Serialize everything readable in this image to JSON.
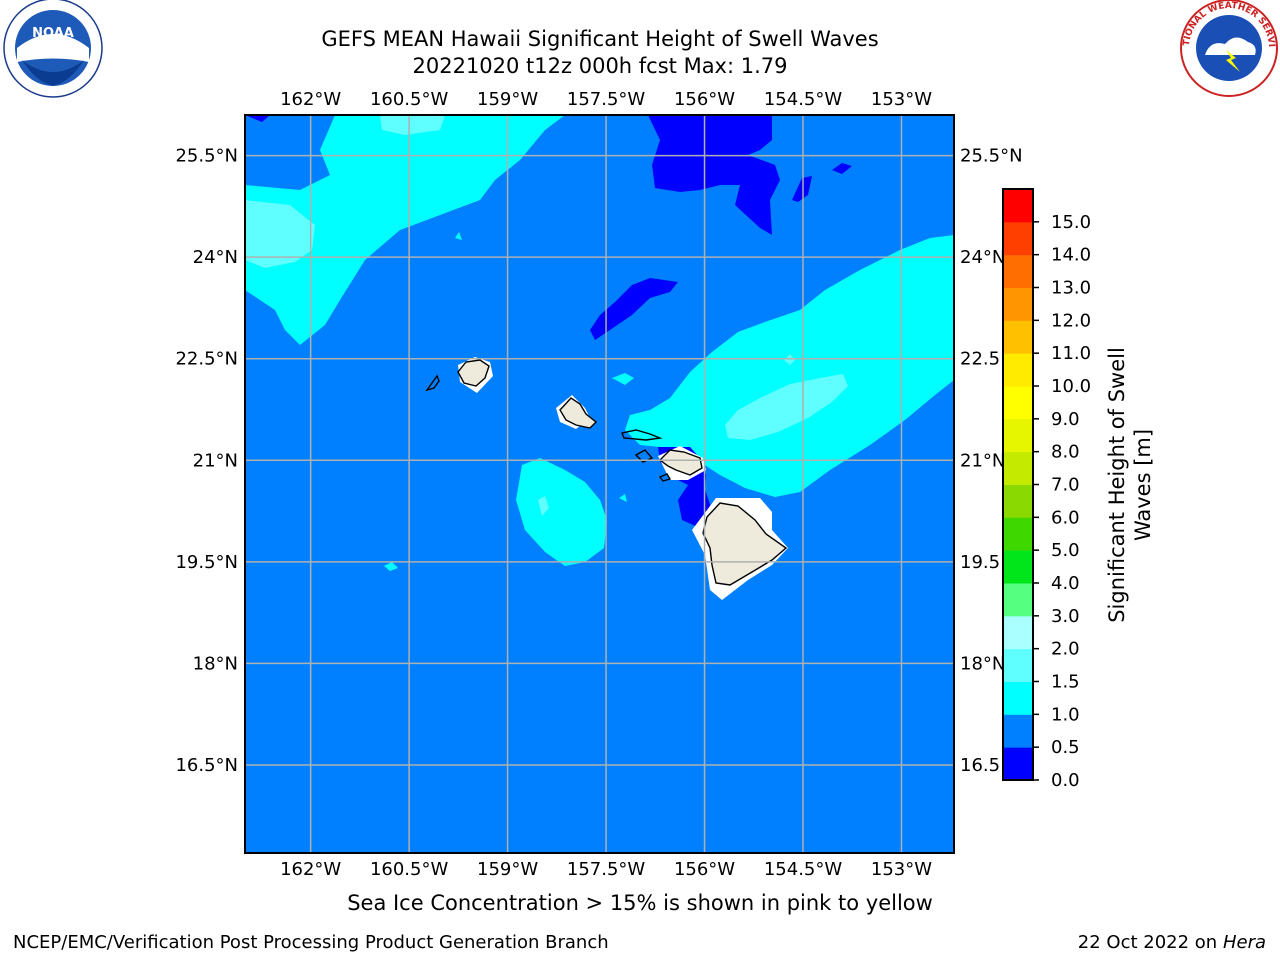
{
  "title": "GEFS MEAN Hawaii Significant Height of Swell Waves",
  "subtitle": "20221020 t12z 000h fcst   Max: 1.79",
  "note": "Sea Ice Concentration > 15% is shown in pink to yellow",
  "footer": {
    "credit": "NCEP/EMC/Verification Post Processing Product Generation Branch",
    "date_prefix": "22 Oct 2022 on ",
    "date_machine": "Hera"
  },
  "logos": {
    "left": {
      "name": "noaa-logo",
      "text": "NOAA"
    },
    "right": {
      "name": "nws-logo",
      "text": "NATIONAL WEATHER SERVICE"
    }
  },
  "map": {
    "lon_ticks": [
      "162°W",
      "160.5°W",
      "159°W",
      "157.5°W",
      "156°W",
      "154.5°W",
      "153°W"
    ],
    "lon_values": [
      -162,
      -160.5,
      -159,
      -157.5,
      -156,
      -154.5,
      -153
    ],
    "lat_ticks": [
      "25.5°N",
      "24°N",
      "22.5°N",
      "21°N",
      "19.5°N",
      "18°N",
      "16.5°N"
    ],
    "lat_values": [
      25.5,
      24,
      22.5,
      21,
      19.5,
      18,
      16.5
    ],
    "right_lat_ticks": [
      "25.5°N",
      "24°N",
      "22.5",
      "21°N",
      "19.5",
      "18°N",
      "16.5"
    ],
    "extent": {
      "lon_min": -163,
      "lon_max": -152.2,
      "lat_min": 15.2,
      "lat_max": 26.1
    },
    "colors": {
      "background": "#0080ff",
      "low": "#0000ff",
      "mid": "#00ffff",
      "high": "#5fffff",
      "land": "#eeebdc",
      "grid": "#b0b0b0"
    }
  },
  "colorbar": {
    "label": "Significant Height of Swell Waves [m]",
    "ticks": [
      "15.0",
      "14.0",
      "13.0",
      "12.0",
      "11.0",
      "10.0",
      "9.0",
      "8.0",
      "7.0",
      "6.0",
      "5.0",
      "4.0",
      "3.0",
      "2.0",
      "1.5",
      "1.0",
      "0.5",
      "0.0"
    ],
    "colors": [
      "#0000ff",
      "#0080ff",
      "#00ffff",
      "#5fffff",
      "#aaffff",
      "#55ff80",
      "#00e61a",
      "#3fd700",
      "#8ad900",
      "#c4ea00",
      "#e6f500",
      "#ffff00",
      "#ffeb00",
      "#ffc000",
      "#ff9500",
      "#ff6e00",
      "#ff3f00",
      "#ff0000"
    ]
  }
}
